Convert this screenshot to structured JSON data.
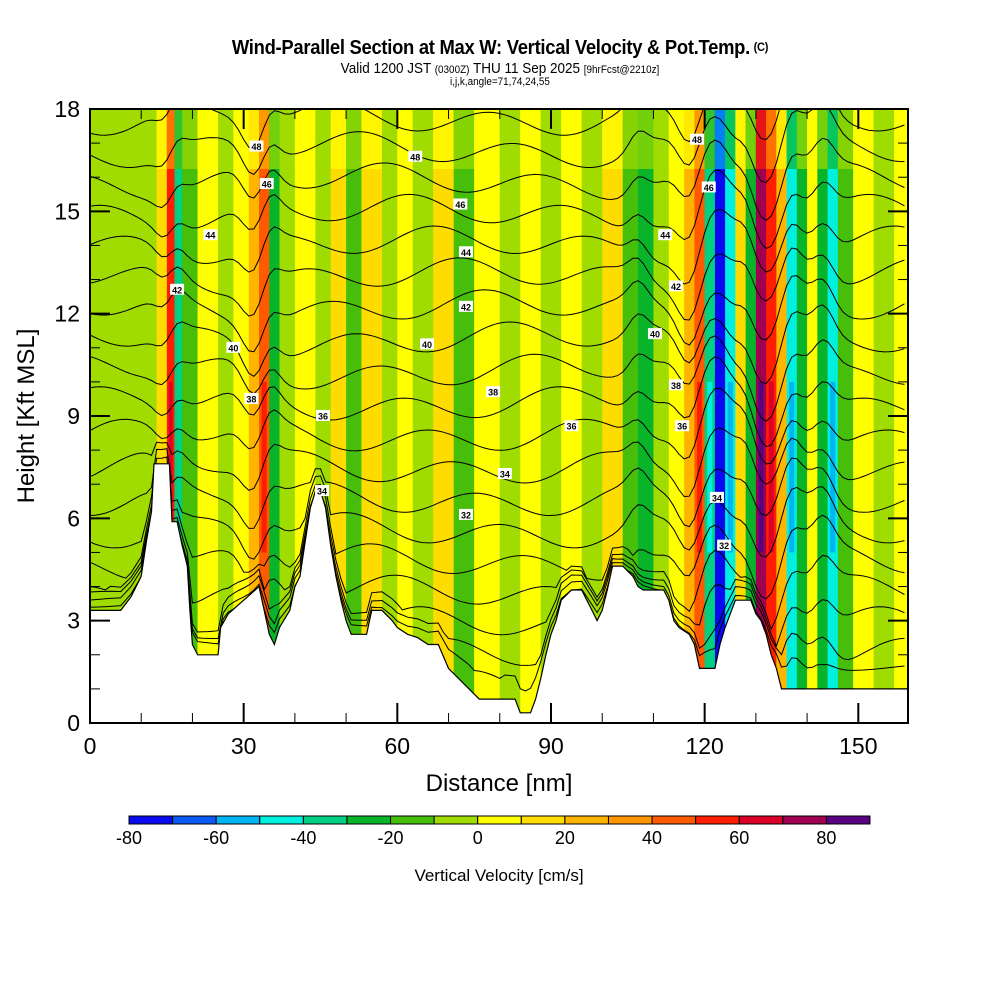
{
  "header": {
    "title": "Wind-Parallel Section at Max W: Vertical Velocity & Pot.Temp.",
    "copyright": "(C)",
    "valid_prefix": "Valid 1200 JST",
    "valid_utc": "(0300Z)",
    "valid_date": "THU 11 Sep 2025",
    "forecast": "[9hrFcst@2210z]",
    "indices": "i,j,k,angle=71,74,24,55"
  },
  "chart_data": {
    "type": "heatmap",
    "title": "Wind-Parallel Section at Max W: Vertical Velocity & Pot.Temp.",
    "xlabel": "Distance [nm]",
    "ylabel": "Height [Kft MSL]",
    "xlim": [
      0,
      159.7
    ],
    "ylim": [
      0,
      18
    ],
    "xticks": [
      0,
      30,
      60,
      90,
      120,
      150
    ],
    "xtick_labels": [
      "0",
      "30",
      "60",
      "90",
      "120",
      "150"
    ],
    "yticks": [
      0,
      3,
      6,
      9,
      12,
      15,
      18
    ],
    "ytick_labels": [
      "0",
      "3",
      "6",
      "9",
      "12",
      "15",
      "18"
    ],
    "colorbar": {
      "title": "Vertical Velocity [cm/s]",
      "bounds": [
        -80,
        -70,
        -60,
        -50,
        -40,
        -30,
        -20,
        -10,
        0,
        10,
        20,
        30,
        40,
        50,
        60,
        70,
        80,
        90
      ],
      "tick_values": [
        -80,
        -60,
        -40,
        -20,
        0,
        20,
        40,
        60,
        80
      ],
      "tick_labels": [
        "-80",
        "-60",
        "-40",
        "-20",
        "0",
        "20",
        "40",
        "60",
        "80"
      ],
      "colors": [
        "#0a0af0",
        "#0a5af5",
        "#00b4f5",
        "#00f0e0",
        "#00d080",
        "#0ab42a",
        "#46be0a",
        "#a0dc00",
        "#ffff00",
        "#ffdc00",
        "#ffb400",
        "#ff9600",
        "#ff5a00",
        "#ff1e00",
        "#dc0028",
        "#a00050",
        "#5a0082"
      ]
    },
    "velocity_columns": [
      {
        "x": 0,
        "w": -5
      },
      {
        "x": 5,
        "w": -8
      },
      {
        "x": 10,
        "w": -3
      },
      {
        "x": 13,
        "w": 15
      },
      {
        "x": 15,
        "w": 55
      },
      {
        "x": 16.5,
        "w": -35
      },
      {
        "x": 18,
        "w": -15
      },
      {
        "x": 21,
        "w": 5
      },
      {
        "x": 25,
        "w": -5
      },
      {
        "x": 28,
        "w": 8
      },
      {
        "x": 31,
        "w": 25
      },
      {
        "x": 33,
        "w": 45
      },
      {
        "x": 35,
        "w": -25
      },
      {
        "x": 37,
        "w": -10
      },
      {
        "x": 40,
        "w": 5
      },
      {
        "x": 44,
        "w": -5
      },
      {
        "x": 47,
        "w": 15
      },
      {
        "x": 50,
        "w": -20
      },
      {
        "x": 53,
        "w": 10
      },
      {
        "x": 57,
        "w": -5
      },
      {
        "x": 60,
        "w": 5
      },
      {
        "x": 63,
        "w": -8
      },
      {
        "x": 67,
        "w": 12
      },
      {
        "x": 71,
        "w": -15
      },
      {
        "x": 75,
        "w": 5
      },
      {
        "x": 80,
        "w": -5
      },
      {
        "x": 84,
        "w": 8
      },
      {
        "x": 88,
        "w": -8
      },
      {
        "x": 92,
        "w": 5
      },
      {
        "x": 96,
        "w": -10
      },
      {
        "x": 100,
        "w": 10
      },
      {
        "x": 104,
        "w": -15
      },
      {
        "x": 107,
        "w": -25
      },
      {
        "x": 110,
        "w": -10
      },
      {
        "x": 113,
        "w": 5
      },
      {
        "x": 116,
        "w": 25
      },
      {
        "x": 118,
        "w": 45
      },
      {
        "x": 120,
        "w": -40
      },
      {
        "x": 122,
        "w": -75
      },
      {
        "x": 124,
        "w": -45
      },
      {
        "x": 126,
        "w": 10
      },
      {
        "x": 128,
        "w": -30
      },
      {
        "x": 130,
        "w": 70
      },
      {
        "x": 132,
        "w": 50
      },
      {
        "x": 134,
        "w": 25
      },
      {
        "x": 136,
        "w": -45
      },
      {
        "x": 138,
        "w": -25
      },
      {
        "x": 140,
        "w": 5
      },
      {
        "x": 142,
        "w": -30
      },
      {
        "x": 144,
        "w": -45
      },
      {
        "x": 146,
        "w": -20
      },
      {
        "x": 149,
        "w": 5
      },
      {
        "x": 153,
        "w": -5
      },
      {
        "x": 157,
        "w": 3
      }
    ],
    "terrain": [
      [
        0,
        3.3
      ],
      [
        6,
        3.3
      ],
      [
        8,
        3.7
      ],
      [
        10,
        4.3
      ],
      [
        11,
        5.3
      ],
      [
        12,
        6.2
      ],
      [
        12.5,
        7.6
      ],
      [
        15.5,
        7.6
      ],
      [
        16,
        5.9
      ],
      [
        17,
        5.9
      ],
      [
        18,
        5.2
      ],
      [
        19,
        4.6
      ],
      [
        19.5,
        3.3
      ],
      [
        20,
        2.3
      ],
      [
        21,
        2.0
      ],
      [
        25,
        2.0
      ],
      [
        25.5,
        2.8
      ],
      [
        27,
        3.2
      ],
      [
        30,
        3.6
      ],
      [
        33,
        4.0
      ],
      [
        34,
        3.3
      ],
      [
        35,
        2.6
      ],
      [
        36,
        2.3
      ],
      [
        37,
        2.8
      ],
      [
        39,
        3.3
      ],
      [
        40,
        4.0
      ],
      [
        41,
        4.3
      ],
      [
        42,
        5.3
      ],
      [
        43,
        6.3
      ],
      [
        44,
        6.8
      ],
      [
        45,
        6.8
      ],
      [
        46,
        6.3
      ],
      [
        47,
        5.2
      ],
      [
        48,
        4.3
      ],
      [
        49,
        3.6
      ],
      [
        50,
        3.0
      ],
      [
        51,
        2.6
      ],
      [
        53,
        2.6
      ],
      [
        54,
        2.6
      ],
      [
        55,
        3.3
      ],
      [
        57,
        3.3
      ],
      [
        59,
        3.0
      ],
      [
        60,
        2.8
      ],
      [
        62,
        2.6
      ],
      [
        64,
        2.5
      ],
      [
        66,
        2.3
      ],
      [
        68,
        2.3
      ],
      [
        70,
        1.6
      ],
      [
        72,
        1.3
      ],
      [
        74,
        1.0
      ],
      [
        76,
        0.7
      ],
      [
        80,
        0.7
      ],
      [
        83,
        0.7
      ],
      [
        84,
        0.3
      ],
      [
        86,
        0.3
      ],
      [
        87,
        0.7
      ],
      [
        88,
        1.3
      ],
      [
        89,
        2.0
      ],
      [
        90,
        2.6
      ],
      [
        91,
        3.0
      ],
      [
        92,
        3.6
      ],
      [
        94,
        3.9
      ],
      [
        96,
        3.9
      ],
      [
        97,
        3.6
      ],
      [
        98,
        3.3
      ],
      [
        99,
        3.0
      ],
      [
        100,
        3.3
      ],
      [
        101,
        3.9
      ],
      [
        102,
        4.6
      ],
      [
        104,
        4.6
      ],
      [
        106,
        4.3
      ],
      [
        107,
        4.0
      ],
      [
        108,
        3.9
      ],
      [
        112,
        3.9
      ],
      [
        113,
        3.6
      ],
      [
        114,
        3.0
      ],
      [
        115,
        2.8
      ],
      [
        117,
        2.6
      ],
      [
        118,
        2.3
      ],
      [
        119,
        1.6
      ],
      [
        120,
        1.6
      ],
      [
        122,
        1.6
      ],
      [
        123,
        2.3
      ],
      [
        124,
        2.8
      ],
      [
        125,
        3.2
      ],
      [
        126,
        3.6
      ],
      [
        129,
        3.6
      ],
      [
        130,
        3.2
      ],
      [
        131,
        3.0
      ],
      [
        132,
        2.6
      ],
      [
        133,
        2.0
      ],
      [
        134,
        1.6
      ],
      [
        135,
        1.0
      ],
      [
        159.7,
        1.0
      ]
    ],
    "theta_contours": [
      30,
      31,
      32,
      33,
      34,
      35,
      36,
      37,
      38,
      39,
      40,
      41,
      42,
      43,
      44,
      45,
      46,
      47,
      48
    ],
    "contour_labels": [
      {
        "value": "48",
        "x": 32.5,
        "y": 16.9
      },
      {
        "value": "46",
        "x": 34.5,
        "y": 15.8
      },
      {
        "value": "44",
        "x": 23.5,
        "y": 14.3
      },
      {
        "value": "42",
        "x": 17,
        "y": 12.7
      },
      {
        "value": "40",
        "x": 28,
        "y": 11.0
      },
      {
        "value": "38",
        "x": 31.5,
        "y": 9.5
      },
      {
        "value": "36",
        "x": 45.5,
        "y": 9.0
      },
      {
        "value": "34",
        "x": 45.3,
        "y": 6.8
      },
      {
        "value": "48",
        "x": 63.5,
        "y": 16.6
      },
      {
        "value": "46",
        "x": 72.3,
        "y": 15.2
      },
      {
        "value": "44",
        "x": 73.4,
        "y": 13.8
      },
      {
        "value": "42",
        "x": 73.4,
        "y": 12.2
      },
      {
        "value": "40",
        "x": 65.8,
        "y": 11.1
      },
      {
        "value": "38",
        "x": 78.7,
        "y": 9.7
      },
      {
        "value": "36",
        "x": 94,
        "y": 8.7
      },
      {
        "value": "34",
        "x": 81,
        "y": 7.3
      },
      {
        "value": "32",
        "x": 73.4,
        "y": 6.1
      },
      {
        "value": "48",
        "x": 118.5,
        "y": 17.1
      },
      {
        "value": "46",
        "x": 120.8,
        "y": 15.7
      },
      {
        "value": "44",
        "x": 112.3,
        "y": 14.3
      },
      {
        "value": "42",
        "x": 114.4,
        "y": 12.8
      },
      {
        "value": "40",
        "x": 110.3,
        "y": 11.4
      },
      {
        "value": "38",
        "x": 114.4,
        "y": 9.9
      },
      {
        "value": "36",
        "x": 115.6,
        "y": 8.7
      },
      {
        "value": "34",
        "x": 122.4,
        "y": 6.6
      },
      {
        "value": "32",
        "x": 123.8,
        "y": 5.2
      }
    ]
  }
}
